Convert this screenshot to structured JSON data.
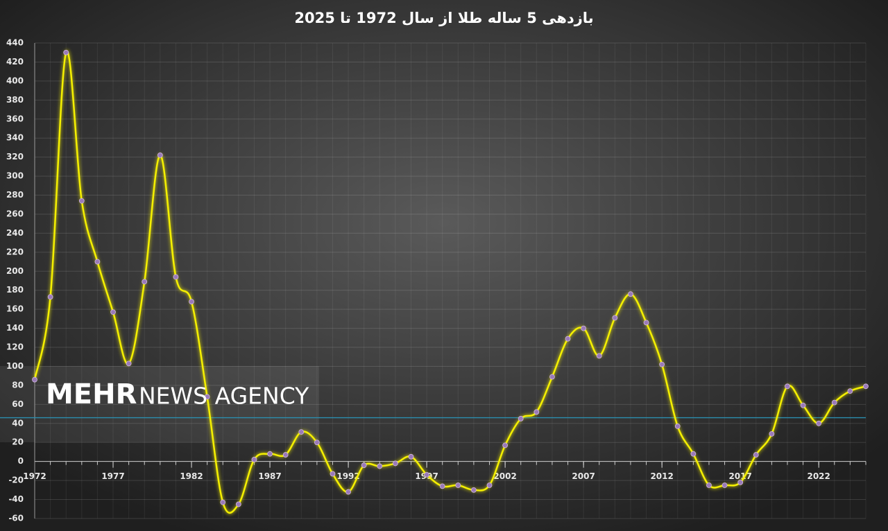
{
  "chart_data": {
    "type": "line",
    "title": "بازدهی 5 ساله طلا از سال 1972 تا 2025",
    "x": [
      1972,
      1973,
      1974,
      1975,
      1976,
      1977,
      1978,
      1979,
      1980,
      1981,
      1982,
      1983,
      1984,
      1985,
      1986,
      1987,
      1988,
      1989,
      1990,
      1991,
      1992,
      1993,
      1994,
      1995,
      1996,
      1997,
      1998,
      1999,
      2000,
      2001,
      2002,
      2003,
      2004,
      2005,
      2006,
      2007,
      2008,
      2009,
      2010,
      2011,
      2012,
      2013,
      2014,
      2015,
      2016,
      2017,
      2018,
      2019,
      2020,
      2021,
      2022,
      2023,
      2024,
      2025
    ],
    "series": [
      {
        "color": "#f5f000",
        "marker_color": "#9a7ab8",
        "values": [
          86,
          173,
          430,
          274,
          210,
          157,
          103,
          189,
          322,
          194,
          168,
          68,
          -43,
          -45,
          2,
          8,
          7,
          31,
          20,
          -13,
          -32,
          -4,
          -5,
          -2,
          5,
          -14,
          -26,
          -25,
          -30,
          -25,
          17,
          45,
          52,
          89,
          129,
          140,
          111,
          151,
          176,
          146,
          102,
          37,
          8,
          -25,
          -25,
          -22,
          7,
          29,
          79,
          59,
          40,
          62,
          74,
          79
        ]
      }
    ],
    "reference_line": {
      "value": 46,
      "color": "#2b8fb0"
    },
    "xlim": [
      1972,
      2025
    ],
    "xticks": [
      1972,
      1977,
      1982,
      1987,
      1992,
      1997,
      2002,
      2007,
      2012,
      2017,
      2022
    ],
    "ylim": [
      -60,
      440
    ],
    "yticks": [
      -60,
      -40,
      -20,
      0,
      20,
      40,
      60,
      80,
      100,
      120,
      140,
      160,
      180,
      200,
      220,
      240,
      260,
      280,
      300,
      320,
      340,
      360,
      380,
      400,
      420,
      440
    ],
    "grid": true,
    "watermark": {
      "bold": "MEHR",
      "light": "NEWS AGENCY"
    }
  }
}
